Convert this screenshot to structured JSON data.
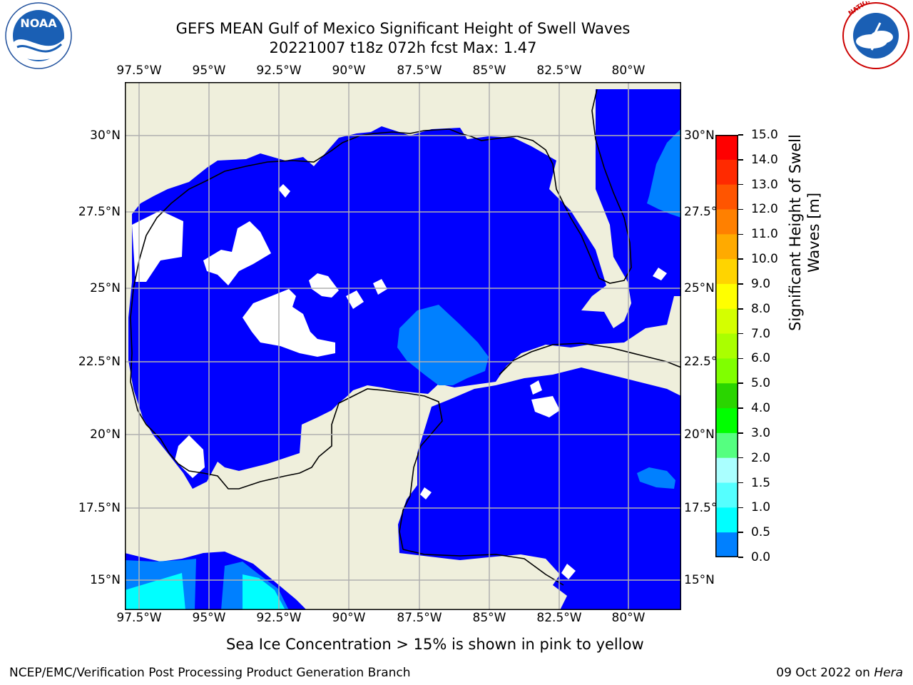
{
  "header": {
    "title_line1": "GEFS MEAN Gulf of Mexico Significant Height of Swell Waves",
    "title_line2": "20221007 t18z 072h fcst   Max: 1.47"
  },
  "logos": {
    "left": "NOAA",
    "left_ring_top": "NATIONAL OCEANIC AND ATMOSPHERIC ADMINISTRATION",
    "left_ring_bottom": "U.S. DEPARTMENT OF COMMERCE",
    "right_ring": "NATIONAL WEATHER SERVICE"
  },
  "map": {
    "lon_labels": [
      "97.5°W",
      "95°W",
      "92.5°W",
      "90°W",
      "87.5°W",
      "85°W",
      "82.5°W",
      "80°W"
    ],
    "lat_labels_left": [
      "30°N",
      "27.5°N",
      "25°N",
      "22.5°N",
      "20°N",
      "17.5°N",
      "15°N"
    ],
    "lat_labels_right": [
      "30°N",
      "27.5°N",
      "25°N",
      "22.5°N",
      "20°N",
      "17.5°N",
      "15°N"
    ],
    "colors": {
      "land": "#efefdc",
      "ocean_0_05": "#0000ff",
      "ocean_05_10": "#0080ff",
      "ocean_10_15": "#00ffff",
      "no_data": "#ffffff",
      "grid": "#b0b0b0",
      "coast": "#000000"
    }
  },
  "colorbar": {
    "label_line1": "Significant Height of Swell",
    "label_line2": "Waves [m]",
    "ticks": [
      "15.0",
      "14.0",
      "13.0",
      "12.0",
      "11.0",
      "10.0",
      "9.0",
      "8.0",
      "7.0",
      "6.0",
      "5.0",
      "4.0",
      "3.0",
      "2.0",
      "1.5",
      "1.0",
      "0.5",
      "0.0"
    ],
    "colors": [
      "#ff0000",
      "#ff2a00",
      "#ff5500",
      "#ff8000",
      "#ffaa00",
      "#ffd400",
      "#ffff00",
      "#d4ff00",
      "#aaff00",
      "#80ff00",
      "#2ad500",
      "#00ff00",
      "#55ff80",
      "#aaffff",
      "#55ffff",
      "#00ffff",
      "#0080ff",
      "#0000ff"
    ]
  },
  "caption": "Sea Ice Concentration > 15% is shown in pink to yellow",
  "footer": {
    "left": "NCEP/EMC/Verification Post Processing Product Generation Branch",
    "right_prefix": "09 Oct 2022 on ",
    "right_host": "Hera"
  }
}
